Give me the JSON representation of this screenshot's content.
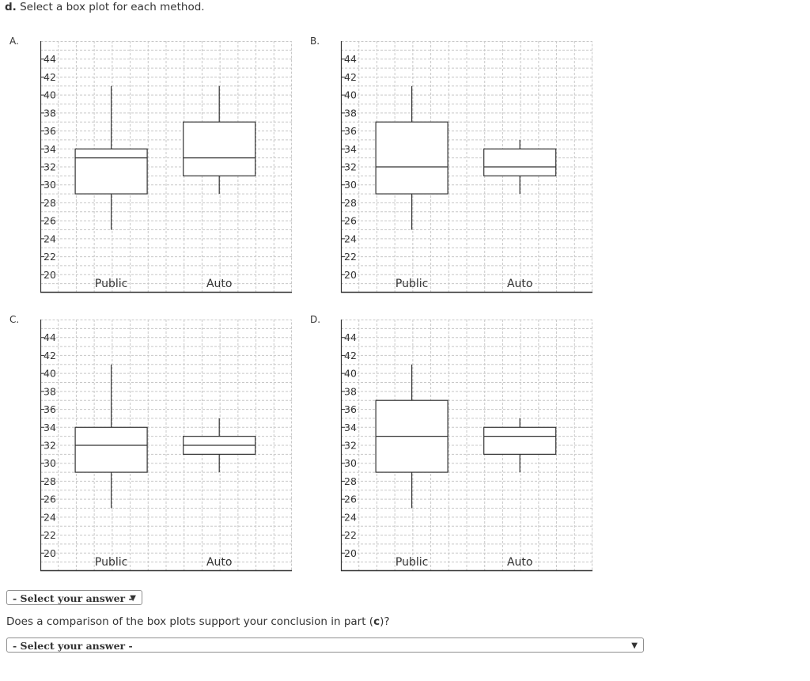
{
  "question": {
    "part_letter": "d.",
    "text": " Select a box plot for each method."
  },
  "chart_data": [
    {
      "label": "A.",
      "type": "boxplot",
      "categories": [
        "Public",
        "Auto"
      ],
      "yticks": [
        20,
        22,
        24,
        26,
        28,
        30,
        32,
        34,
        36,
        38,
        40,
        42,
        44
      ],
      "ylim": [
        18,
        46
      ],
      "grid": true,
      "boxes": [
        {
          "category": "Public",
          "min": 25,
          "q1": 29,
          "median": 33,
          "q3": 34,
          "max": 41
        },
        {
          "category": "Auto",
          "min": 29,
          "q1": 31,
          "median": 33,
          "q3": 37,
          "max": 41
        }
      ]
    },
    {
      "label": "B.",
      "type": "boxplot",
      "categories": [
        "Public",
        "Auto"
      ],
      "yticks": [
        20,
        22,
        24,
        26,
        28,
        30,
        32,
        34,
        36,
        38,
        40,
        42,
        44
      ],
      "ylim": [
        18,
        46
      ],
      "grid": true,
      "boxes": [
        {
          "category": "Public",
          "min": 25,
          "q1": 29,
          "median": 32,
          "q3": 37,
          "max": 41
        },
        {
          "category": "Auto",
          "min": 29,
          "q1": 31,
          "median": 32,
          "q3": 34,
          "max": 35
        }
      ]
    },
    {
      "label": "C.",
      "type": "boxplot",
      "categories": [
        "Public",
        "Auto"
      ],
      "yticks": [
        20,
        22,
        24,
        26,
        28,
        30,
        32,
        34,
        36,
        38,
        40,
        42,
        44
      ],
      "ylim": [
        18,
        46
      ],
      "grid": true,
      "boxes": [
        {
          "category": "Public",
          "min": 25,
          "q1": 29,
          "median": 32,
          "q3": 34,
          "max": 41
        },
        {
          "category": "Auto",
          "min": 29,
          "q1": 31,
          "median": 32,
          "q3": 33,
          "max": 35
        }
      ]
    },
    {
      "label": "D.",
      "type": "boxplot",
      "categories": [
        "Public",
        "Auto"
      ],
      "yticks": [
        20,
        22,
        24,
        26,
        28,
        30,
        32,
        34,
        36,
        38,
        40,
        42,
        44
      ],
      "ylim": [
        18,
        46
      ],
      "grid": true,
      "boxes": [
        {
          "category": "Public",
          "min": 25,
          "q1": 29,
          "median": 33,
          "q3": 37,
          "max": 41
        },
        {
          "category": "Auto",
          "min": 29,
          "q1": 31,
          "median": 33,
          "q3": 34,
          "max": 35
        }
      ]
    }
  ],
  "select1": {
    "selected": "- Select your answer -",
    "arrow": "▼"
  },
  "question2": {
    "text_before": "Does a comparison of the box plots support your conclusion in part (",
    "part_ref": "c",
    "text_after": ")?"
  },
  "select2": {
    "selected": "- Select your answer -",
    "arrow": "▼"
  },
  "colors": {
    "grid": "#c8c8c8",
    "axis": "#333333",
    "box": "#333333",
    "text": "#333333"
  }
}
